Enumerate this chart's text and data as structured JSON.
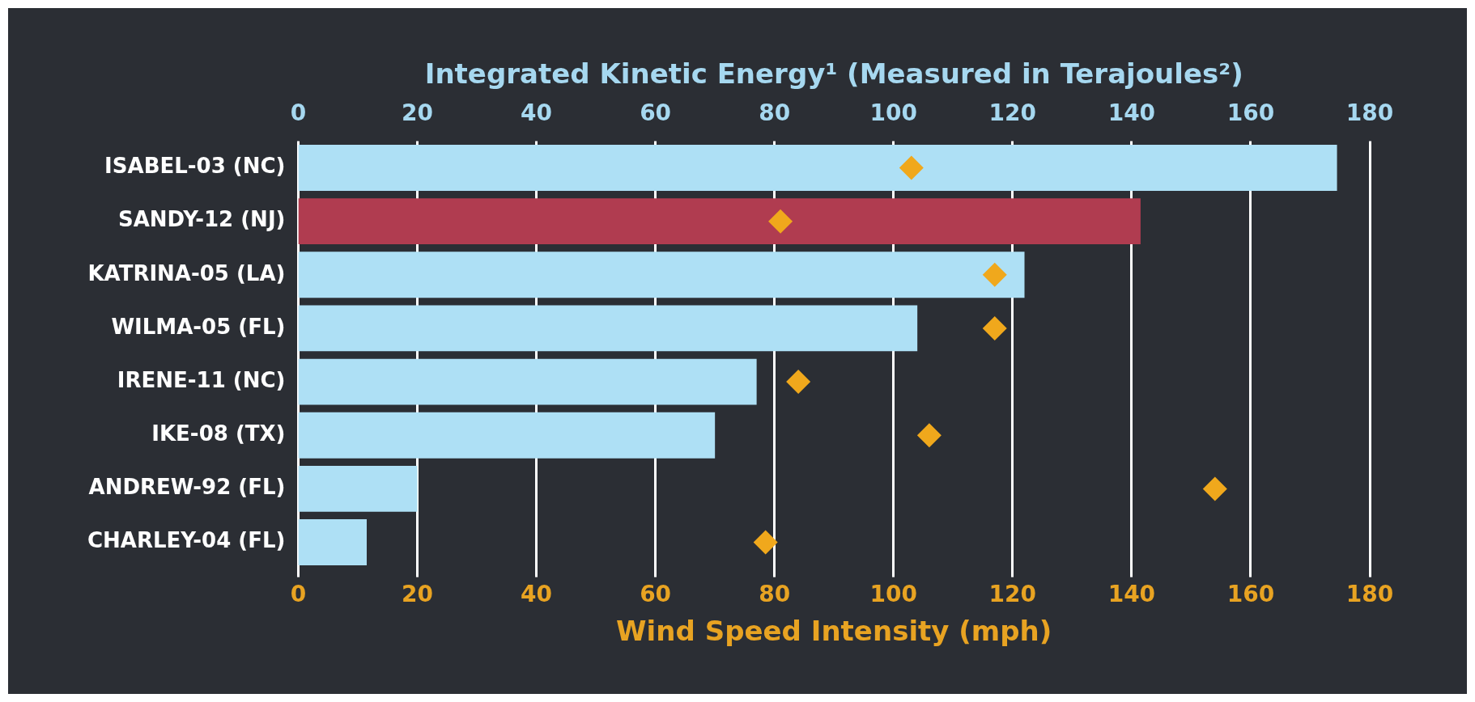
{
  "chart_data": {
    "type": "bar",
    "orientation": "horizontal",
    "x2label": "Integrated Kinetic Energy¹ (Measured in Terajoules²)",
    "xlabel": "Wind Speed Intensity (mph)",
    "categories": [
      "ISABEL-03 (NC)",
      "SANDY-12 (NJ)",
      "KATRINA-05 (LA)",
      "WILMA-05 (FL)",
      "IRENE-11 (NC)",
      "IKE-08 (TX)",
      "ANDREW-92 (FL)",
      "CHARLEY-04 (FL)"
    ],
    "series": [
      {
        "axis": "x2",
        "values": [
          174.5,
          141.5,
          122,
          104,
          77,
          70,
          20,
          11.5
        ],
        "colors": [
          "#aee0f5",
          "#b03c50",
          "#aee0f5",
          "#aee0f5",
          "#aee0f5",
          "#aee0f5",
          "#aee0f5",
          "#aee0f5"
        ]
      },
      {
        "type": "scatter",
        "color": "#f0a81c",
        "marker": "diamond",
        "values": [
          103,
          81,
          117,
          117,
          84,
          106,
          154,
          78.5
        ]
      }
    ],
    "xlim": [
      0,
      180
    ],
    "xticks": [
      0,
      20,
      40,
      60,
      80,
      100,
      120,
      140,
      160,
      180
    ],
    "x2lim": [
      0,
      180
    ],
    "x2ticks": [
      0,
      20,
      40,
      60,
      80,
      100,
      120,
      140,
      160,
      180
    ],
    "grid": "x"
  }
}
